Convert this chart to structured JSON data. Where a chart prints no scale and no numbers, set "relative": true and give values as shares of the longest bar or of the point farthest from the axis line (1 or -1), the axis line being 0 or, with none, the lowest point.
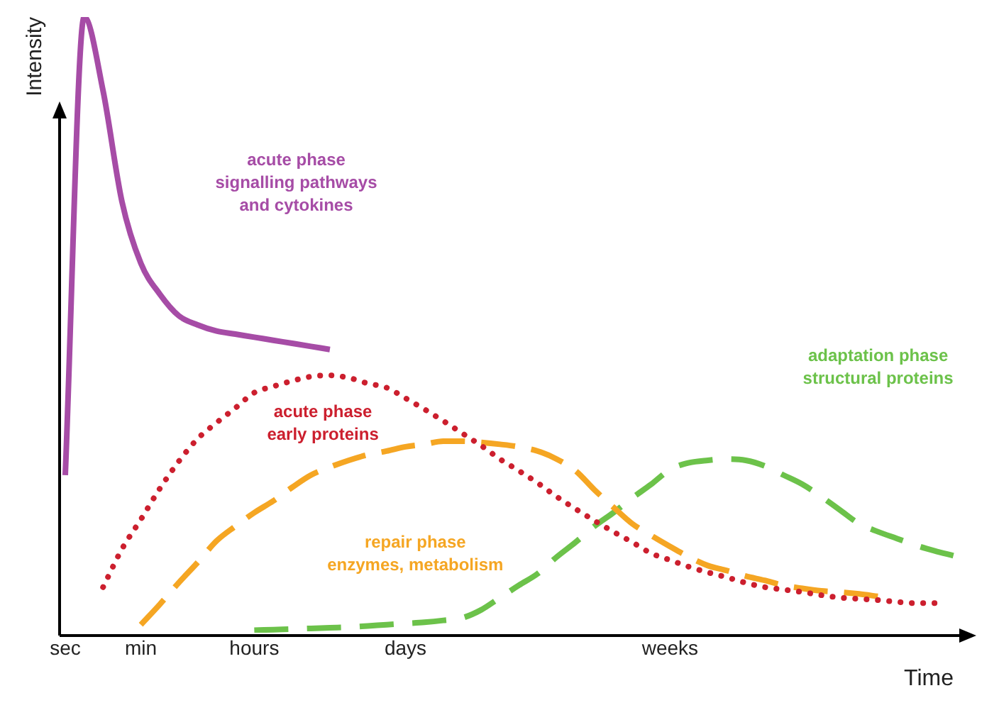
{
  "chart_data": {
    "type": "line",
    "relative": true,
    "xlabel": "Time",
    "ylabel": "Intensity",
    "legend": false,
    "grid": false,
    "marker": "none",
    "categories": [
      "sec",
      null,
      null,
      null,
      "min",
      null,
      null,
      null,
      null,
      null,
      "hours",
      null,
      null,
      null,
      null,
      null,
      null,
      null,
      "days",
      null,
      null,
      null,
      null,
      null,
      null,
      null,
      null,
      null,
      null,
      null,
      null,
      null,
      "weeks",
      null,
      null,
      null,
      null,
      null,
      null,
      null,
      null,
      null,
      null,
      null,
      null,
      null,
      null,
      null
    ],
    "series": [
      {
        "name": "acute phase signalling pathways and cytokines",
        "color": "#a64ca6",
        "line_style": "solid",
        "values": [
          0.256,
          1.0,
          0.88,
          0.7,
          0.6,
          0.55,
          0.515,
          0.5,
          0.49,
          0.485,
          0.48,
          0.475,
          0.47,
          0.465,
          0.46,
          null,
          null,
          null,
          null,
          null,
          null,
          null,
          null,
          null,
          null,
          null,
          null,
          null,
          null,
          null,
          null,
          null,
          null,
          null,
          null,
          null,
          null,
          null,
          null,
          null,
          null,
          null,
          null,
          null,
          null,
          null,
          null,
          null
        ]
      },
      {
        "name": "acute phase early proteins",
        "color": "#cc1f2e",
        "line_style": "dotted",
        "values": [
          null,
          null,
          0.074,
          0.136,
          0.184,
          0.234,
          0.278,
          0.315,
          0.341,
          0.365,
          0.39,
          0.4,
          0.409,
          0.416,
          0.418,
          0.414,
          0.405,
          0.398,
          0.381,
          0.363,
          0.344,
          0.324,
          0.304,
          0.282,
          0.263,
          0.243,
          0.221,
          0.201,
          0.182,
          0.164,
          0.147,
          0.129,
          0.118,
          0.107,
          0.098,
          0.09,
          0.081,
          0.074,
          0.07,
          0.066,
          0.061,
          0.057,
          0.055,
          0.053,
          0.05,
          0.048,
          0.048,
          null
        ]
      },
      {
        "name": "repair phase enzymes, metabolism",
        "color": "#f5a623",
        "line_style": "dashed",
        "values": [
          null,
          null,
          null,
          null,
          0.013,
          0.046,
          0.081,
          0.114,
          0.149,
          0.173,
          0.195,
          0.214,
          0.236,
          0.256,
          0.269,
          0.28,
          0.289,
          0.295,
          0.302,
          0.306,
          0.311,
          0.311,
          0.309,
          0.306,
          0.302,
          0.295,
          0.282,
          0.263,
          0.232,
          0.204,
          0.177,
          0.158,
          0.14,
          0.123,
          0.109,
          0.101,
          0.092,
          0.085,
          0.077,
          0.072,
          0.068,
          0.066,
          0.063,
          0.059,
          null,
          null,
          null,
          null
        ]
      },
      {
        "name": "adaptation phase structural proteins",
        "color": "#6cc24a",
        "line_style": "dashed",
        "values": [
          null,
          null,
          null,
          null,
          null,
          null,
          null,
          null,
          null,
          null,
          0.004,
          0.005,
          0.006,
          0.007,
          0.008,
          0.009,
          0.011,
          0.013,
          0.015,
          0.017,
          0.02,
          0.024,
          0.037,
          0.057,
          0.077,
          0.096,
          0.123,
          0.147,
          0.173,
          0.195,
          0.219,
          0.241,
          0.265,
          0.276,
          0.28,
          0.282,
          0.28,
          0.271,
          0.256,
          0.241,
          0.221,
          0.199,
          0.177,
          0.164,
          0.153,
          0.142,
          0.133,
          0.125
        ]
      }
    ]
  }
}
